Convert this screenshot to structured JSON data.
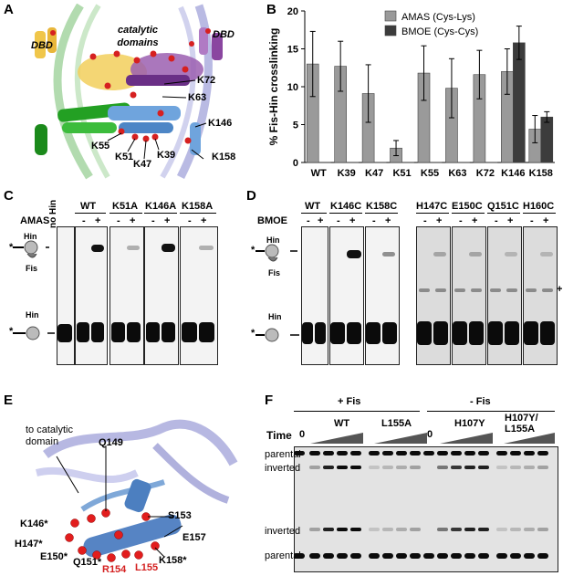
{
  "panels": {
    "a": "A",
    "b": "B",
    "c": "C",
    "d": "D",
    "e": "E",
    "f": "F"
  },
  "panel_a": {
    "dbd_left": "DBD",
    "dbd_right": "DBD",
    "catalytic": "catalytic domains",
    "residues": [
      "K72",
      "K63",
      "K146",
      "K55",
      "K51",
      "K47",
      "K39",
      "K158"
    ]
  },
  "chart_data": {
    "type": "bar",
    "ylabel": "% Fis-Hin crosslinking",
    "ylim": [
      0,
      20
    ],
    "yticks": [
      "0",
      "5",
      "10",
      "15",
      "20"
    ],
    "categories": [
      "WT",
      "K39",
      "K47",
      "K51",
      "K55",
      "K63",
      "K72",
      "K146",
      "K158"
    ],
    "series": [
      {
        "name": "AMAS (Cys-Lys)",
        "color": "#9a9a9a",
        "values": [
          13.0,
          12.7,
          9.1,
          1.9,
          11.8,
          9.8,
          11.6,
          12.0,
          4.4
        ],
        "errors": [
          4.3,
          3.3,
          3.8,
          1.0,
          3.6,
          3.9,
          3.2,
          3.0,
          1.8
        ]
      },
      {
        "name": "BMOE (Cys-Cys)",
        "color": "#3c3c3c",
        "values": [
          0.0,
          0.0,
          0.0,
          0.0,
          0.0,
          0.0,
          0.0,
          15.8,
          6.0
        ],
        "errors": [
          0,
          0,
          0,
          0,
          0,
          0,
          0,
          2.2,
          0.7
        ]
      }
    ],
    "legend": "top-center"
  },
  "panel_c": {
    "no_hin": "no Hin",
    "reagent": "AMAS",
    "lanes": [
      "WT",
      "K51A",
      "K146A",
      "K158A"
    ],
    "minus": "-",
    "plus": "+",
    "star": "*",
    "hin": "Hin",
    "fis": "Fis"
  },
  "panel_d": {
    "reagent": "BMOE",
    "lanes_left": [
      "WT",
      "K146C",
      "K158C"
    ],
    "lanes_right": [
      "H147C",
      "E150C",
      "Q151C",
      "H160C"
    ],
    "minus": "-",
    "plus": "+",
    "star": "*",
    "hin": "Hin",
    "fis": "Fis",
    "side_mark": "+"
  },
  "panel_e": {
    "to_catalytic": "to catalytic domain",
    "residues_black": [
      "Q149",
      "S153",
      "E157",
      "K146*",
      "H147*",
      "E150*",
      "Q151*",
      "K158*"
    ],
    "residues_red": [
      "R154",
      "L155"
    ]
  },
  "panel_f": {
    "plus_fis": "+ Fis",
    "minus_fis": "- Fis",
    "time": "Time",
    "zero": "0",
    "groups": [
      "WT",
      "L155A",
      "H107Y",
      "H107Y/ L155A"
    ],
    "rows": [
      "parental",
      "inverted",
      "inverted",
      "parental"
    ]
  }
}
